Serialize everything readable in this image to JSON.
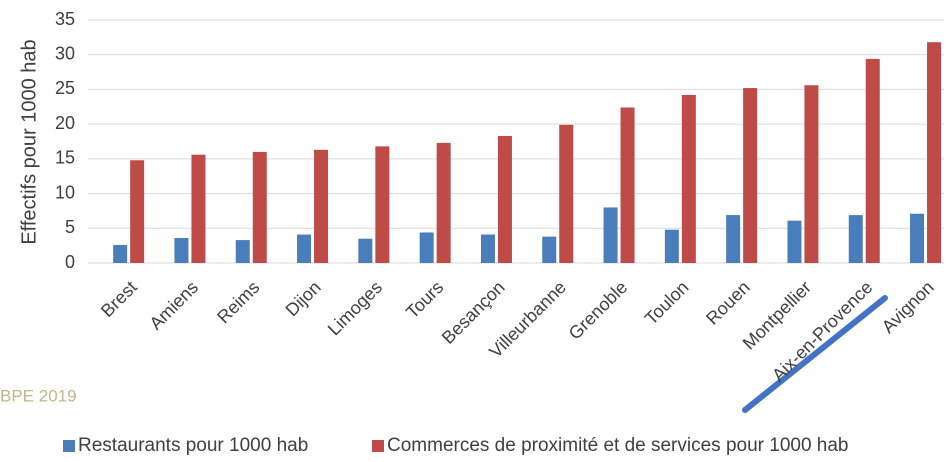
{
  "chart_data": {
    "type": "bar",
    "y_axis_label": "Effectifs pour 1000 hab",
    "source": "BPE 2019",
    "categories": [
      "Brest",
      "Amiens",
      "Reims",
      "Dijon",
      "Limoges",
      "Tours",
      "Besançon",
      "Villeurbanne",
      "Grenoble",
      "Toulon",
      "Rouen",
      "Montpellier",
      "Aix-en-Provence",
      "Avignon"
    ],
    "series": [
      {
        "name": "Restaurants pour 1000 hab",
        "color": "#4a7ebb",
        "values": [
          2.6,
          3.6,
          3.3,
          4.1,
          3.5,
          4.4,
          4.1,
          3.8,
          8.0,
          4.8,
          6.9,
          6.1,
          6.9,
          7.1
        ]
      },
      {
        "name": "Commerces de proximité et de services pour 1000 hab",
        "color": "#be4b48",
        "values": [
          14.8,
          15.6,
          16.0,
          16.3,
          16.8,
          17.3,
          18.3,
          19.9,
          22.4,
          24.2,
          25.2,
          25.6,
          29.4,
          31.8
        ]
      }
    ],
    "ylim": [
      0,
      35
    ],
    "yticks": [
      0,
      5,
      10,
      15,
      20,
      25,
      30,
      35
    ],
    "grid": true,
    "legend": "bottom"
  }
}
